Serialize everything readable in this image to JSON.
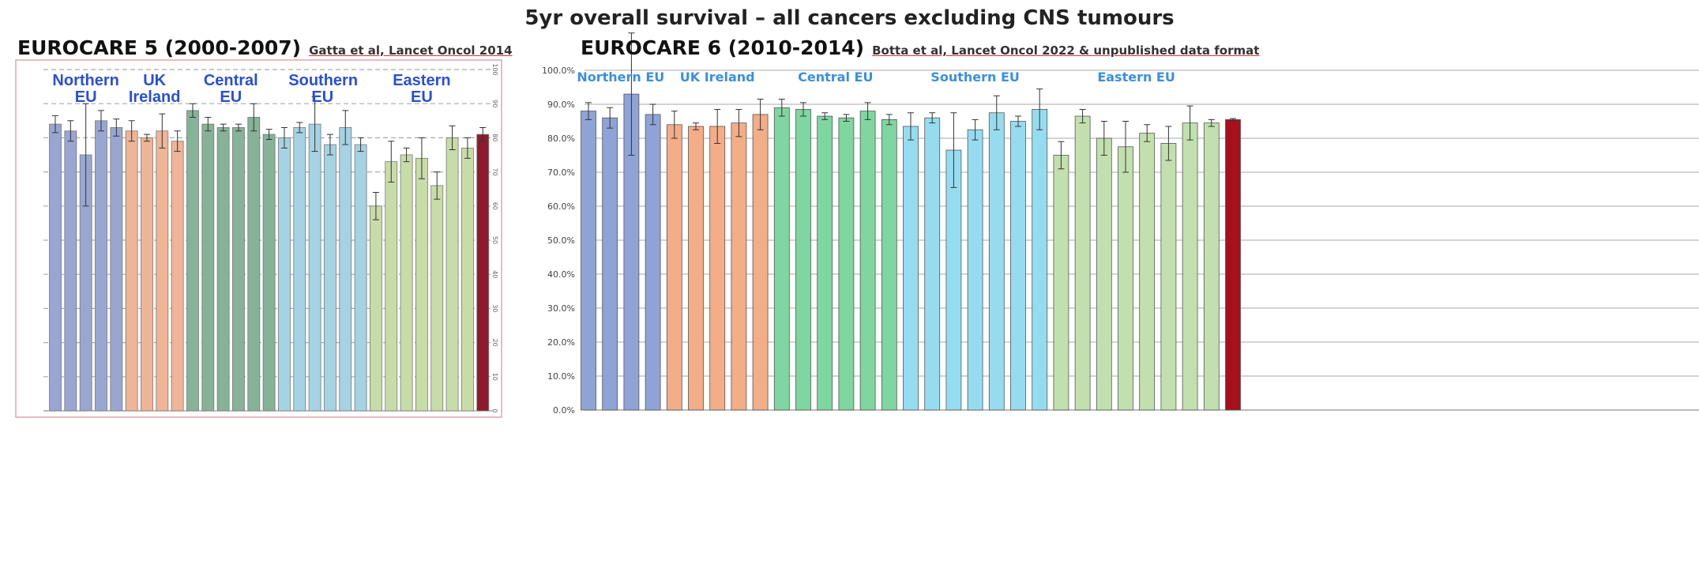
{
  "title": "5yr overall survival – all cancers excluding CNS tumours",
  "chart_data": [
    {
      "type": "bar",
      "title": "EUROCARE 5 (2000-2007)",
      "source": "Gatta et al, Lancet Oncol 2014",
      "ylim": [
        0,
        100
      ],
      "yticks": [
        0,
        10,
        20,
        30,
        40,
        50,
        60,
        70,
        80,
        90,
        100
      ],
      "grid": true,
      "groups": [
        {
          "name": "Northern EU",
          "color": "#9aa6d2",
          "values": [
            84,
            82,
            75,
            85,
            83
          ],
          "errors": [
            2.5,
            3,
            15,
            3,
            2.5
          ]
        },
        {
          "name": "UK Ireland",
          "color": "#f0b496",
          "values": [
            82,
            80,
            82,
            79
          ],
          "errors": [
            3,
            1,
            5,
            3
          ]
        },
        {
          "name": "Central EU",
          "color": "#86b398",
          "values": [
            88,
            84,
            83,
            83,
            86,
            81
          ],
          "errors": [
            2,
            2,
            1,
            1,
            4,
            1.5
          ]
        },
        {
          "name": "Southern EU",
          "color": "#a6d3e3",
          "values": [
            80,
            83,
            84,
            78,
            83,
            78
          ],
          "errors": [
            3,
            1.5,
            8,
            3,
            5,
            2
          ]
        },
        {
          "name": "Eastern EU",
          "color": "#c8dca8",
          "values": [
            60,
            73,
            75,
            74,
            66,
            80,
            77
          ],
          "errors": [
            4,
            6,
            2,
            6,
            4,
            3.5,
            3
          ]
        },
        {
          "color": "#8e1b2c",
          "values": [
            81
          ],
          "errors": [
            2
          ]
        }
      ]
    },
    {
      "type": "bar",
      "title": "EUROCARE 6 (2010-2014)",
      "source": "Botta et al, Lancet Oncol 2022 & unpublished data format",
      "ylim": [
        0,
        100
      ],
      "yticks": [
        {
          "value": 0,
          "label": "0.0%"
        },
        {
          "value": 10,
          "label": "10.0%"
        },
        {
          "value": 20,
          "label": "20.0%"
        },
        {
          "value": 30,
          "label": "30.0%"
        },
        {
          "value": 40,
          "label": "40.0%"
        },
        {
          "value": 50,
          "label": "50.0%"
        },
        {
          "value": 60,
          "label": "60.0%"
        },
        {
          "value": 70,
          "label": "70.0%"
        },
        {
          "value": 80,
          "label": "80.0%"
        },
        {
          "value": 90,
          "label": "90.0%"
        },
        {
          "value": 100,
          "label": "100.0%"
        }
      ],
      "grid": true,
      "groups": [
        {
          "name": "Northern EU",
          "color": "#8fa3d6",
          "values": [
            88,
            86,
            93,
            87
          ],
          "errors": [
            2.5,
            3,
            18,
            3
          ]
        },
        {
          "name": "UK Ireland",
          "color": "#f3ad87",
          "values": [
            84,
            83.5,
            83.5,
            84.5,
            87
          ],
          "errors": [
            4,
            1,
            5,
            4,
            4.5
          ]
        },
        {
          "name": "Central EU",
          "color": "#7fd6a0",
          "values": [
            89,
            88.5,
            86.5,
            86,
            88,
            85.5
          ],
          "errors": [
            2.5,
            2,
            1,
            1,
            2.5,
            1.5
          ]
        },
        {
          "name": "Southern EU",
          "color": "#96dcf0",
          "values": [
            83.5,
            86,
            76.5,
            82.5,
            87.5,
            85,
            88.5
          ],
          "errors": [
            4,
            1.5,
            11,
            3,
            5,
            1.5,
            6
          ]
        },
        {
          "name": "Eastern EU",
          "color": "#c2e0ae",
          "values": [
            75,
            86.5,
            80,
            77.5,
            81.5,
            78.5,
            84.5,
            84.5
          ],
          "errors": [
            4,
            2,
            5,
            7.5,
            2.5,
            5,
            5,
            1
          ]
        },
        {
          "color": "#a5101a",
          "values": [
            85.5
          ],
          "errors": [
            0.3
          ]
        }
      ]
    }
  ]
}
